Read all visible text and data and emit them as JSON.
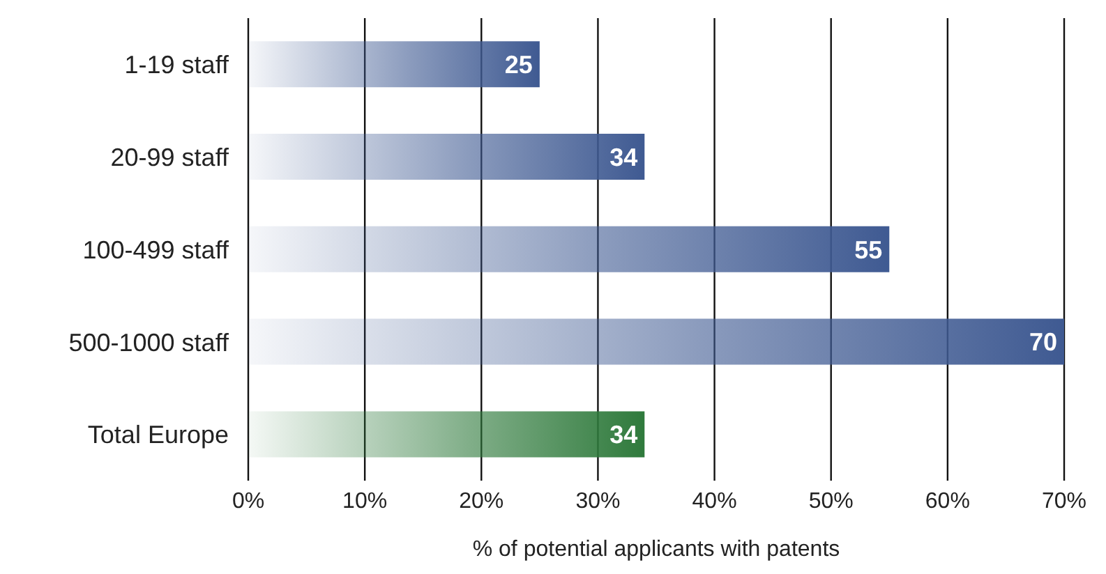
{
  "chart_data": {
    "type": "bar",
    "orientation": "horizontal",
    "xlabel": "% of potential applicants with patents",
    "categories": [
      "1-19 staff",
      "20-99 staff",
      "100-499 staff",
      "500-1000 staff",
      "Total Europe"
    ],
    "values": [
      25,
      34,
      55,
      70,
      34
    ],
    "colors": [
      "#3f5a92",
      "#3f5a92",
      "#3f5a92",
      "#3f5a92",
      "#2f7a3c"
    ],
    "xlim": [
      0,
      70
    ],
    "xticks": [
      {
        "value": 0,
        "label": "0%"
      },
      {
        "value": 10,
        "label": "10%"
      },
      {
        "value": 20,
        "label": "20%"
      },
      {
        "value": 30,
        "label": "30%"
      },
      {
        "value": 40,
        "label": "40%"
      },
      {
        "value": 50,
        "label": "50%"
      },
      {
        "value": 60,
        "label": "60%"
      },
      {
        "value": 70,
        "label": "70%"
      }
    ],
    "grid": "x",
    "data_labels": true
  }
}
